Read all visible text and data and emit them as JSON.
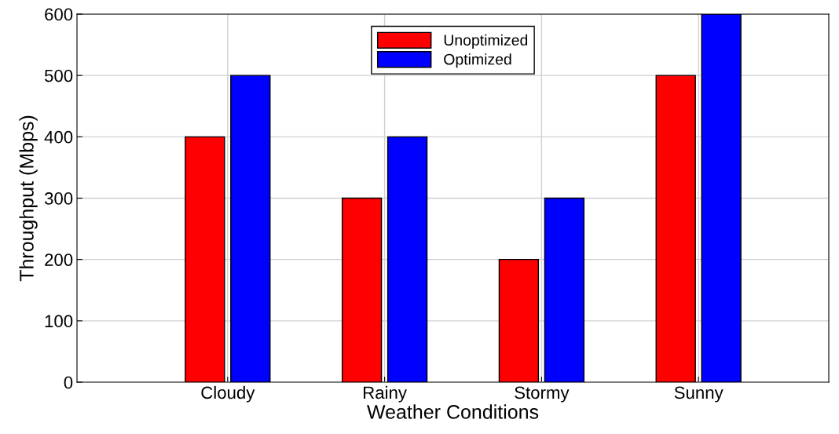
{
  "chart_data": {
    "type": "bar",
    "xlabel": "Weather Conditions",
    "ylabel": "Throughput (Mbps)",
    "categories": [
      "Cloudy",
      "Rainy",
      "Stormy",
      "Sunny"
    ],
    "series": [
      {
        "name": "Unoptimized",
        "color": "#ff0000",
        "values": [
          400,
          300,
          200,
          500
        ]
      },
      {
        "name": "Optimized",
        "color": "#0000ff",
        "values": [
          500,
          400,
          300,
          600
        ]
      }
    ],
    "ylim": [
      0,
      600
    ],
    "yticks": [
      0,
      100,
      200,
      300,
      400,
      500,
      600
    ],
    "grid": true,
    "legend": "top"
  }
}
